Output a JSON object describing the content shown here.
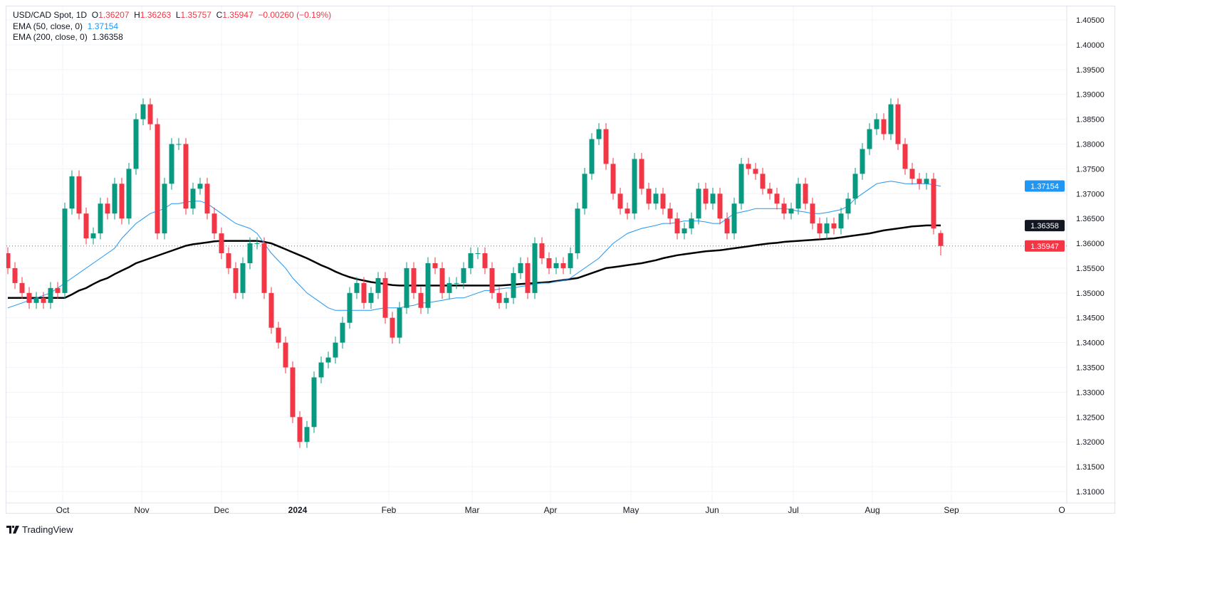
{
  "header": {
    "symbol": "USD/CAD Spot, 1D",
    "o_label": "O",
    "o_value": "1.36207",
    "h_label": "H",
    "h_value": "1.36263",
    "l_label": "L",
    "l_value": "1.35757",
    "c_label": "C",
    "c_value": "1.35947",
    "change": "−0.00260 (−0.19%)",
    "ema50_label": "EMA (50, close, 0)",
    "ema50_value": "1.37154",
    "ema200_label": "EMA (200, close, 0)",
    "ema200_value": "1.36358"
  },
  "branding": "TradingView",
  "colors": {
    "up": "#089981",
    "down": "#f23645",
    "ema50": "#2196f3",
    "ema200": "#000000",
    "price_line": "#f23645"
  },
  "chart_data": {
    "type": "candlestick",
    "title": "USD/CAD Spot, 1D",
    "ylim": [
      1.3075,
      1.4075
    ],
    "yticks": [
      "1.31000",
      "1.31500",
      "1.32000",
      "1.32500",
      "1.33000",
      "1.33500",
      "1.34000",
      "1.34500",
      "1.35000",
      "1.35500",
      "1.36000",
      "1.36500",
      "1.37000",
      "1.37500",
      "1.38000",
      "1.38500",
      "1.39000",
      "1.39500",
      "1.40000",
      "1.40500"
    ],
    "xticks": [
      "Oct",
      "Nov",
      "Dec",
      "2024",
      "Feb",
      "Mar",
      "Apr",
      "May",
      "Jun",
      "Jul",
      "Aug",
      "Sep",
      "O"
    ],
    "first_open": 1.358,
    "wick": 0.0012,
    "closes": [
      1.355,
      1.352,
      1.35,
      1.348,
      1.349,
      1.348,
      1.351,
      1.35,
      1.367,
      1.3735,
      1.366,
      1.361,
      1.362,
      1.368,
      1.366,
      1.372,
      1.365,
      1.375,
      1.385,
      1.388,
      1.384,
      1.362,
      1.372,
      1.38,
      1.38,
      1.367,
      1.371,
      1.372,
      1.366,
      1.362,
      1.358,
      1.355,
      1.35,
      1.356,
      1.36,
      1.36,
      1.35,
      1.343,
      1.34,
      1.335,
      1.325,
      1.32,
      1.323,
      1.333,
      1.336,
      1.337,
      1.34,
      1.344,
      1.35,
      1.352,
      1.348,
      1.35,
      1.353,
      1.345,
      1.341,
      1.347,
      1.355,
      1.35,
      1.347,
      1.356,
      1.355,
      1.35,
      1.352,
      1.352,
      1.355,
      1.358,
      1.358,
      1.355,
      1.35,
      1.348,
      1.349,
      1.354,
      1.356,
      1.35,
      1.36,
      1.357,
      1.355,
      1.356,
      1.355,
      1.358,
      1.367,
      1.374,
      1.381,
      1.383,
      1.376,
      1.37,
      1.367,
      1.366,
      1.377,
      1.371,
      1.368,
      1.37,
      1.367,
      1.365,
      1.362,
      1.363,
      1.365,
      1.371,
      1.368,
      1.37,
      1.365,
      1.362,
      1.368,
      1.376,
      1.375,
      1.374,
      1.371,
      1.37,
      1.368,
      1.366,
      1.367,
      1.372,
      1.368,
      1.364,
      1.362,
      1.364,
      1.363,
      1.366,
      1.369,
      1.374,
      1.379,
      1.383,
      1.385,
      1.382,
      1.388,
      1.38,
      1.375,
      1.373,
      1.372,
      1.373,
      1.363,
      1.3595
    ],
    "last_candle": {
      "open": 1.36207,
      "high": 1.36263,
      "low": 1.35757,
      "close": 1.35947
    },
    "ema50": [
      1.347,
      1.3475,
      1.348,
      1.3485,
      1.349,
      1.3495,
      1.35,
      1.351,
      1.352,
      1.353,
      1.354,
      1.355,
      1.356,
      1.357,
      1.358,
      1.359,
      1.361,
      1.3625,
      1.364,
      1.365,
      1.366,
      1.3665,
      1.367,
      1.368,
      1.368,
      1.3683,
      1.3685,
      1.3685,
      1.368,
      1.367,
      1.366,
      1.365,
      1.364,
      1.3635,
      1.363,
      1.362,
      1.36,
      1.358,
      1.3565,
      1.355,
      1.353,
      1.3515,
      1.35,
      1.349,
      1.348,
      1.347,
      1.3465,
      1.3465,
      1.3465,
      1.3465,
      1.3465,
      1.3465,
      1.3468,
      1.347,
      1.347,
      1.347,
      1.3473,
      1.3475,
      1.348,
      1.348,
      1.3483,
      1.3485,
      1.3488,
      1.349,
      1.349,
      1.3495,
      1.35,
      1.3505,
      1.3505,
      1.3508,
      1.351,
      1.351,
      1.3513,
      1.3515,
      1.3518,
      1.352,
      1.352,
      1.3523,
      1.3525,
      1.353,
      1.354,
      1.355,
      1.356,
      1.357,
      1.3585,
      1.36,
      1.361,
      1.362,
      1.3625,
      1.363,
      1.3633,
      1.3636,
      1.364,
      1.364,
      1.3642,
      1.3645,
      1.3645,
      1.3645,
      1.3643,
      1.364,
      1.364,
      1.365,
      1.366,
      1.3663,
      1.3666,
      1.367,
      1.367,
      1.367,
      1.367,
      1.367,
      1.3668,
      1.3665,
      1.3663,
      1.366,
      1.366,
      1.3662,
      1.3665,
      1.3668,
      1.3675,
      1.369,
      1.37,
      1.371,
      1.372,
      1.3723,
      1.3725,
      1.3723,
      1.372,
      1.372,
      1.372,
      1.372,
      1.3718,
      1.3715
    ],
    "ema200": [
      1.349,
      1.349,
      1.349,
      1.349,
      1.349,
      1.349,
      1.349,
      1.349,
      1.349,
      1.3497,
      1.3505,
      1.351,
      1.3518,
      1.3525,
      1.353,
      1.3538,
      1.3545,
      1.3552,
      1.356,
      1.3565,
      1.357,
      1.3575,
      1.358,
      1.3585,
      1.359,
      1.3595,
      1.3598,
      1.36,
      1.3602,
      1.3604,
      1.3605,
      1.3605,
      1.3605,
      1.3605,
      1.3605,
      1.3605,
      1.3603,
      1.36,
      1.3594,
      1.3588,
      1.3582,
      1.3576,
      1.357,
      1.3563,
      1.3556,
      1.355,
      1.3543,
      1.3537,
      1.3532,
      1.3528,
      1.3525,
      1.3522,
      1.352,
      1.3518,
      1.3516,
      1.3515,
      1.3515,
      1.3515,
      1.3515,
      1.3515,
      1.3515,
      1.3515,
      1.3515,
      1.3515,
      1.3515,
      1.3515,
      1.3515,
      1.3515,
      1.3515,
      1.3515,
      1.3516,
      1.3517,
      1.3518,
      1.3519,
      1.352,
      1.3521,
      1.3522,
      1.3524,
      1.3526,
      1.3528,
      1.353,
      1.3535,
      1.354,
      1.3545,
      1.355,
      1.3552,
      1.3554,
      1.3556,
      1.3558,
      1.356,
      1.3563,
      1.3566,
      1.357,
      1.3573,
      1.3576,
      1.3578,
      1.358,
      1.3582,
      1.3584,
      1.3585,
      1.3586,
      1.3588,
      1.359,
      1.3592,
      1.3594,
      1.3596,
      1.3598,
      1.36,
      1.3601,
      1.3603,
      1.3604,
      1.3605,
      1.3606,
      1.3607,
      1.3608,
      1.3609,
      1.361,
      1.3612,
      1.3614,
      1.3616,
      1.3618,
      1.362,
      1.3623,
      1.3626,
      1.3628,
      1.363,
      1.3632,
      1.3634,
      1.3635,
      1.3636,
      1.3636,
      1.3636
    ],
    "price_badges": [
      {
        "label": "1.37154",
        "value": 1.37154,
        "color": "#2196f3"
      },
      {
        "label": "1.36358",
        "value": 1.36358,
        "color": "#131722"
      },
      {
        "label": "1.35947",
        "value": 1.35947,
        "color": "#f23645"
      }
    ]
  }
}
